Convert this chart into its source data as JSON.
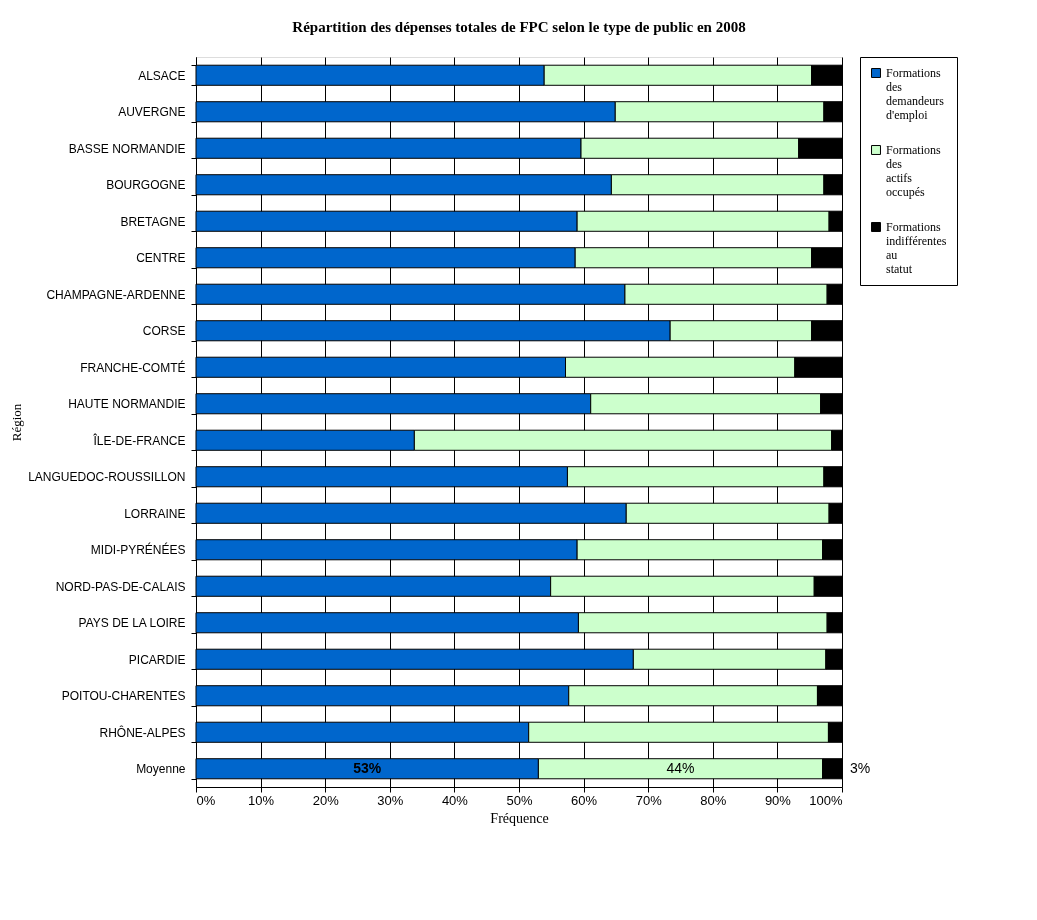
{
  "chart_data": {
    "type": "bar",
    "orientation": "horizontal",
    "stacked": true,
    "title": "Répartition des dépenses totales de FPC selon le type de public en 2008",
    "xlabel": "Fréquence",
    "ylabel": "Région",
    "categories": [
      "ALSACE",
      "AUVERGNE",
      "BASSE NORMANDIE",
      "BOURGOGNE",
      "BRETAGNE",
      "CENTRE",
      "CHAMPAGNE-ARDENNE",
      "CORSE",
      "FRANCHE-COMTÉ",
      "HAUTE NORMANDIE",
      "ÎLE-DE-FRANCE",
      "LANGUEDOC-ROUSSILLON",
      "LORRAINE",
      "MIDI-PYRÉNÉES",
      "NORD-PAS-DE-CALAIS",
      "PAYS DE LA LOIRE",
      "PICARDIE",
      "POITOU-CHARENTES",
      "RHÔNE-ALPES",
      "Moyenne"
    ],
    "series": [
      {
        "name": "Formations des demandeurs d'emploi",
        "color": "#0066cc",
        "values": [
          53.9,
          64.9,
          59.6,
          64.3,
          59.0,
          58.7,
          66.4,
          73.4,
          57.2,
          61.1,
          33.8,
          57.5,
          66.6,
          59.0,
          54.9,
          59.2,
          67.7,
          57.7,
          51.5,
          53
        ],
        "value_labels": [
          null,
          null,
          null,
          null,
          null,
          null,
          null,
          null,
          null,
          null,
          null,
          null,
          null,
          null,
          null,
          null,
          null,
          null,
          null,
          "53%"
        ]
      },
      {
        "name": "Formations des actifs occupés",
        "color": "#ccffcc",
        "values": [
          41.4,
          32.3,
          33.7,
          32.9,
          39.0,
          36.6,
          31.3,
          21.9,
          35.5,
          35.6,
          64.6,
          39.7,
          31.4,
          38.0,
          40.8,
          38.5,
          29.8,
          38.5,
          46.4,
          44
        ],
        "value_labels": [
          null,
          null,
          null,
          null,
          null,
          null,
          null,
          null,
          null,
          null,
          null,
          null,
          null,
          null,
          null,
          null,
          null,
          null,
          null,
          "44%"
        ]
      },
      {
        "name": "Formations indifférentes au statut",
        "color": "#000000",
        "values": [
          4.7,
          2.8,
          6.7,
          2.8,
          2.0,
          4.7,
          2.3,
          4.7,
          7.3,
          3.3,
          1.6,
          2.8,
          2.0,
          3.0,
          4.3,
          2.3,
          2.5,
          3.8,
          2.1,
          3
        ],
        "value_labels": [
          null,
          null,
          null,
          null,
          null,
          null,
          null,
          null,
          null,
          null,
          null,
          null,
          null,
          null,
          null,
          null,
          null,
          null,
          null,
          "3%"
        ]
      }
    ],
    "xlim": [
      0,
      100
    ],
    "xticks": [
      {
        "value": 0,
        "label": "0%"
      },
      {
        "value": 10,
        "label": "10%"
      },
      {
        "value": 20,
        "label": "20%"
      },
      {
        "value": 30,
        "label": "30%"
      },
      {
        "value": 40,
        "label": "40%"
      },
      {
        "value": 50,
        "label": "50%"
      },
      {
        "value": 60,
        "label": "60%"
      },
      {
        "value": 70,
        "label": "70%"
      },
      {
        "value": 80,
        "label": "80%"
      },
      {
        "value": 90,
        "label": "90%"
      },
      {
        "value": 100,
        "label": "100%"
      }
    ],
    "grid": "x",
    "legend": "right"
  }
}
